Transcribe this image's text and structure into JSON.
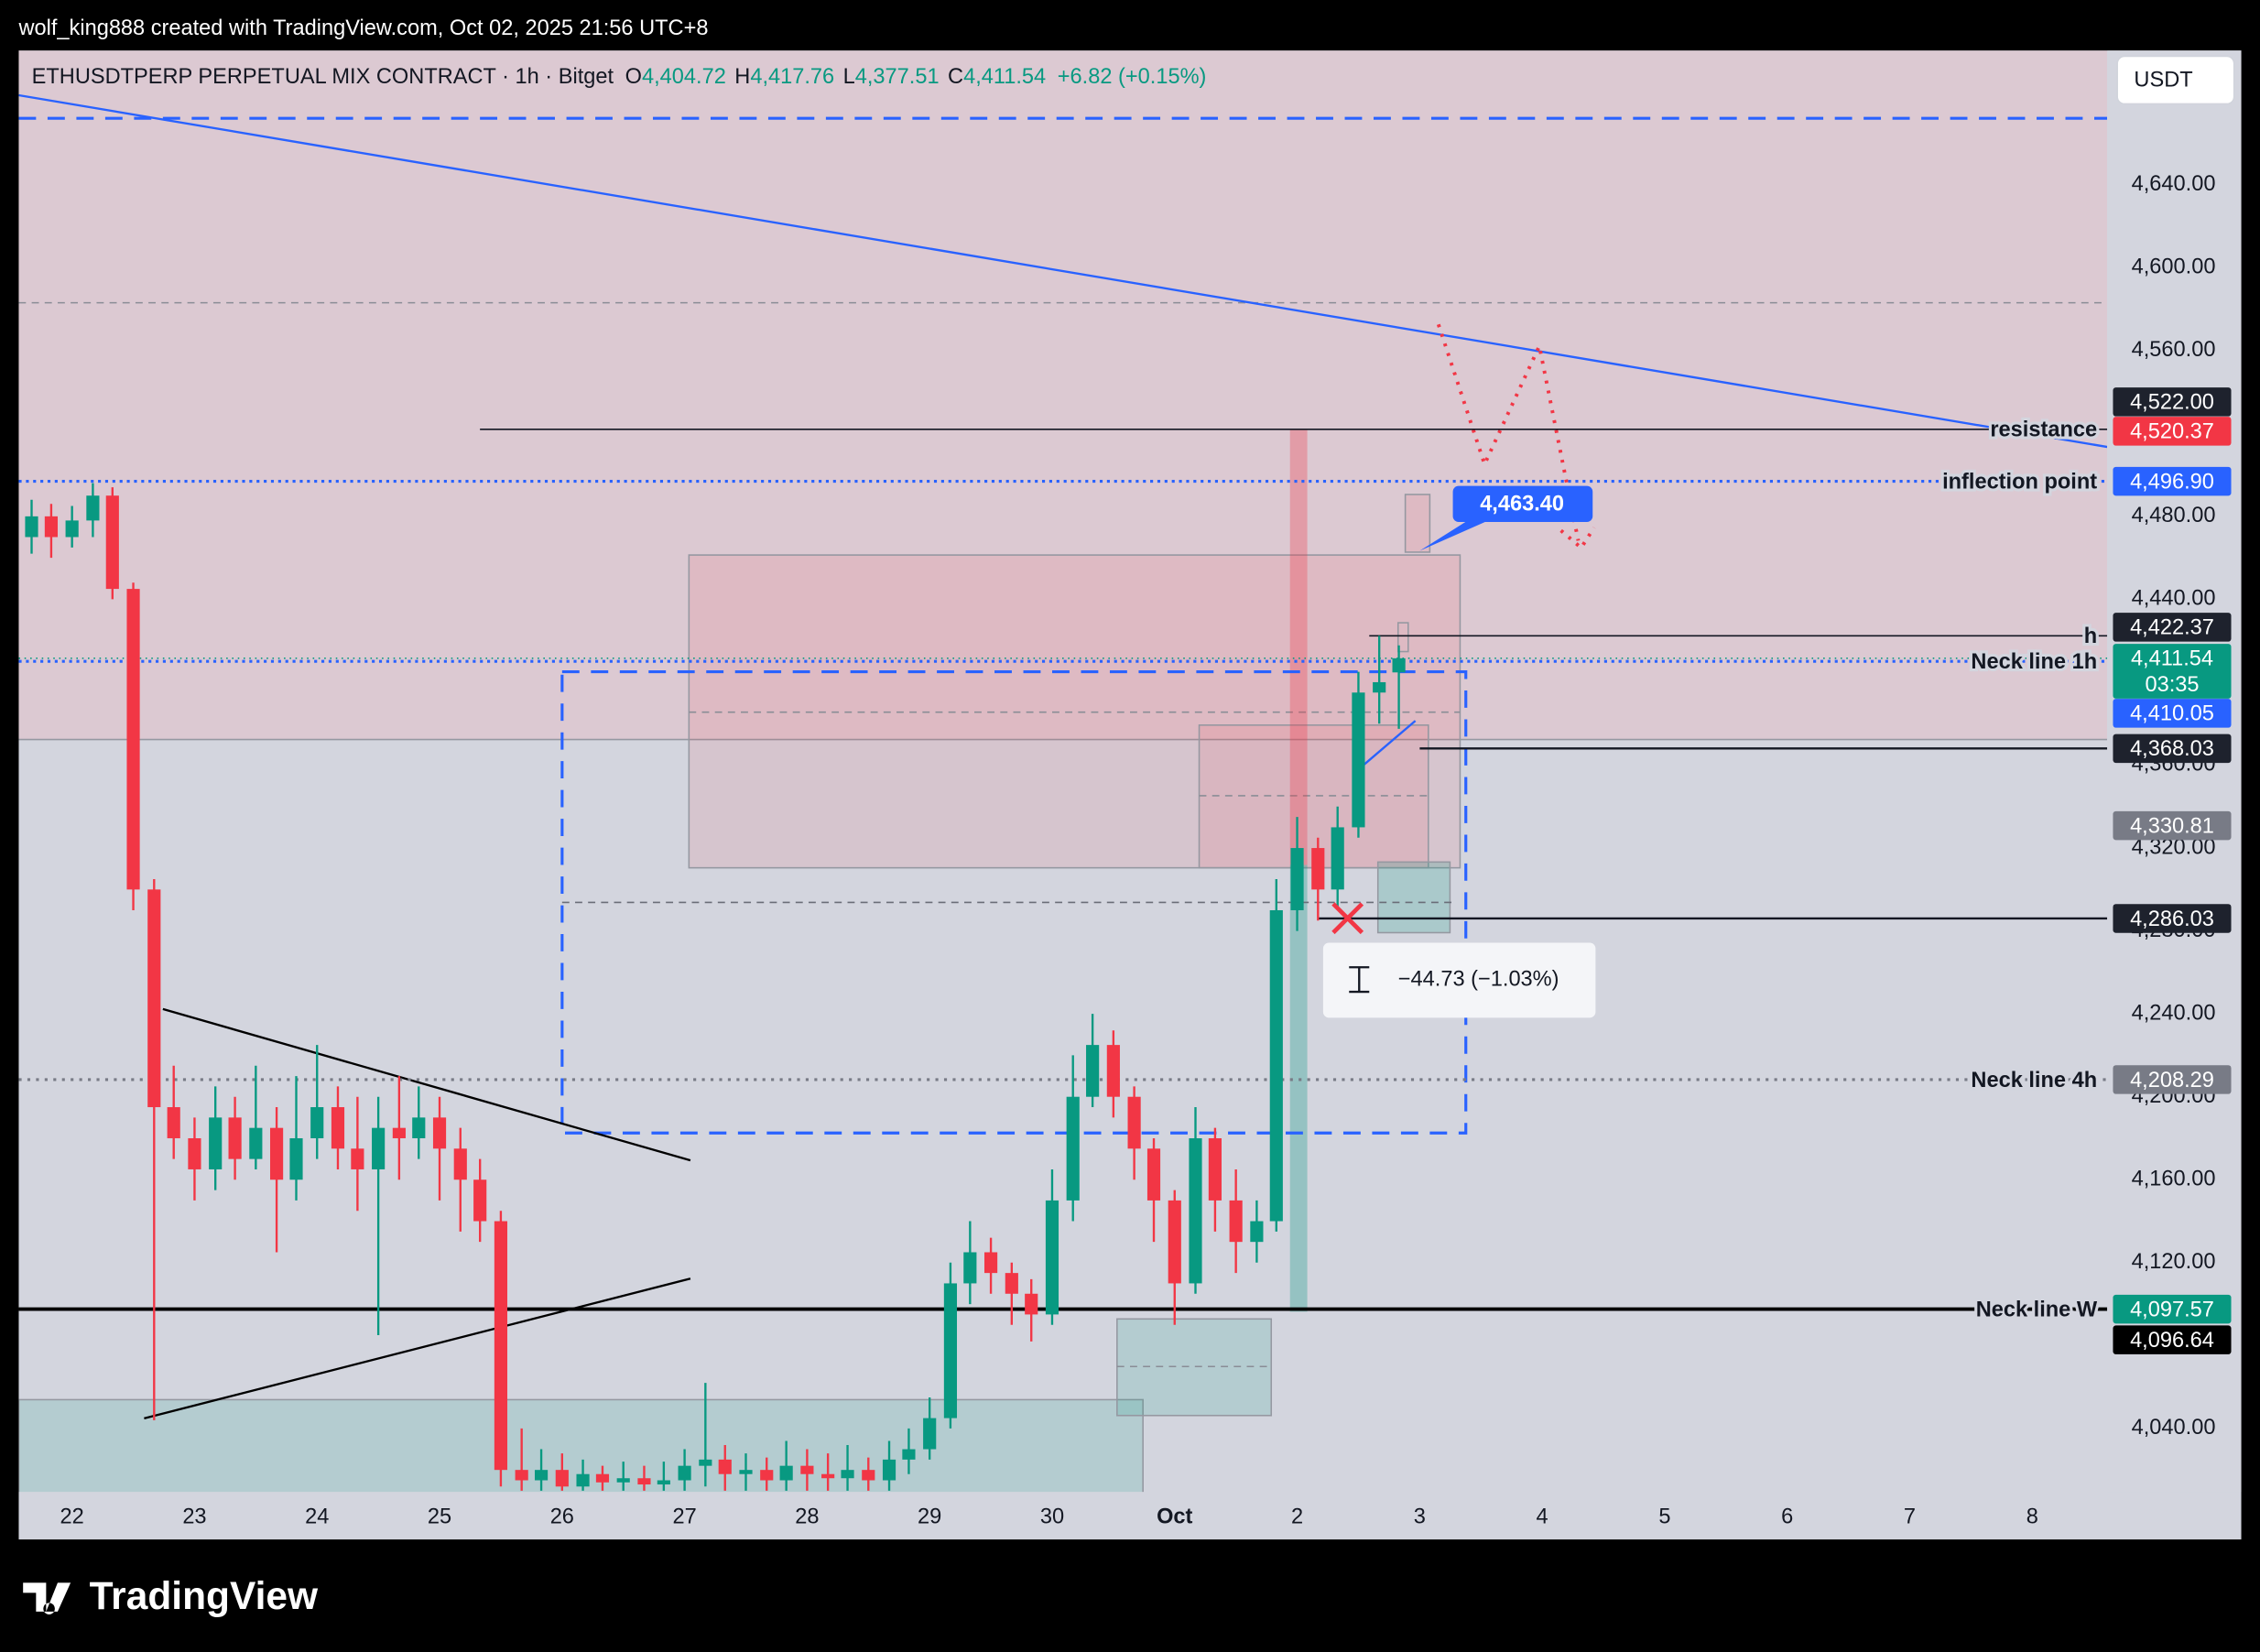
{
  "header": {
    "credit": "wolf_king888 created with TradingView.com, Oct 02, 2025 21:56 UTC+8",
    "symbol": "ETHUSDTPERP PERPETUAL MIX CONTRACT · 1h · Bitget",
    "ohlc": [
      {
        "key": "O",
        "value": "4,404.72"
      },
      {
        "key": "H",
        "value": "4,417.76"
      },
      {
        "key": "L",
        "value": "4,377.51"
      },
      {
        "key": "C",
        "value": "4,411.54"
      }
    ],
    "change": "+6.82 (+0.15%)",
    "currency": "USDT"
  },
  "footer": {
    "brand": "TradingView"
  },
  "chart_data": {
    "type": "candlestick",
    "up_color": "#089981",
    "down_color": "#f23645",
    "x": [
      -0.33,
      -0.17,
      0,
      0.17,
      0.33,
      0.5,
      0.67,
      0.83,
      1,
      1.17,
      1.33,
      1.5,
      1.67,
      1.83,
      2,
      2.17,
      2.33,
      2.5,
      2.67,
      2.83,
      3,
      3.17,
      3.33,
      3.5,
      3.67,
      3.83,
      4,
      4.17,
      4.33,
      4.5,
      4.67,
      4.83,
      5,
      5.17,
      5.33,
      5.5,
      5.67,
      5.83,
      6,
      6.17,
      6.33,
      6.5,
      6.67,
      6.83,
      7,
      7.17,
      7.33,
      7.5,
      7.67,
      7.83,
      8,
      8.17,
      8.33,
      8.5,
      8.67,
      8.83,
      9,
      9.17,
      9.33,
      9.5,
      9.67,
      9.83,
      10,
      10.17,
      10.33,
      10.5,
      10.67,
      10.83
    ],
    "open": [
      4470,
      4480,
      4470,
      4478,
      4490,
      4445,
      4300,
      4195,
      4180,
      4165,
      4190,
      4170,
      4185,
      4160,
      4180,
      4195,
      4175,
      4165,
      4185,
      4180,
      4190,
      4175,
      4160,
      4140,
      4020,
      4015,
      4020,
      4012,
      4018,
      4014,
      4016,
      4013,
      4015,
      4022,
      4025,
      4018,
      4020,
      4015,
      4022,
      4018,
      4016,
      4020,
      4015,
      4025,
      4030,
      4045,
      4110,
      4125,
      4115,
      4105,
      4095,
      4150,
      4200,
      4225,
      4200,
      4175,
      4150,
      4110,
      4180,
      4150,
      4130,
      4140,
      4290,
      4320,
      4300,
      4330,
      4395,
      4404.72
    ],
    "high": [
      4488,
      4486,
      4485,
      4496,
      4494,
      4448,
      4305,
      4215,
      4190,
      4205,
      4200,
      4215,
      4195,
      4210,
      4225,
      4205,
      4200,
      4200,
      4210,
      4205,
      4200,
      4185,
      4170,
      4145,
      4040,
      4030,
      4028,
      4025,
      4022,
      4024,
      4022,
      4024,
      4030,
      4062,
      4032,
      4028,
      4026,
      4034,
      4030,
      4028,
      4032,
      4026,
      4034,
      4040,
      4055,
      4120,
      4140,
      4132,
      4120,
      4112,
      4165,
      4220,
      4240,
      4232,
      4205,
      4180,
      4155,
      4195,
      4185,
      4165,
      4150,
      4305,
      4335,
      4325,
      4340,
      4405,
      4422.37,
      4417.76
    ],
    "low": [
      4462,
      4460,
      4465,
      4470,
      4440,
      4290,
      4044,
      4170,
      4150,
      4155,
      4160,
      4165,
      4125,
      4150,
      4170,
      4165,
      4145,
      4085,
      4160,
      4170,
      4150,
      4135,
      4130,
      4012,
      4010,
      4010,
      4010,
      4010,
      4010,
      4010,
      4010,
      4010,
      4010,
      4012,
      4010,
      4010,
      4010,
      4010,
      4010,
      4010,
      4010,
      4010,
      4010,
      4018,
      4025,
      4040,
      4100,
      4105,
      4090,
      4082,
      4090,
      4140,
      4195,
      4190,
      4160,
      4130,
      4090,
      4105,
      4135,
      4115,
      4120,
      4135,
      4280,
      4285,
      4290,
      4325,
      4380,
      4377.51
    ],
    "close": [
      4480,
      4470,
      4478,
      4490,
      4445,
      4300,
      4195,
      4180,
      4165,
      4190,
      4170,
      4185,
      4160,
      4180,
      4195,
      4175,
      4165,
      4185,
      4180,
      4190,
      4175,
      4160,
      4140,
      4020,
      4015,
      4020,
      4012,
      4018,
      4014,
      4016,
      4013,
      4015,
      4022,
      4025,
      4018,
      4020,
      4015,
      4022,
      4018,
      4016,
      4020,
      4015,
      4025,
      4030,
      4045,
      4110,
      4125,
      4115,
      4105,
      4095,
      4150,
      4200,
      4225,
      4200,
      4175,
      4150,
      4110,
      4180,
      4150,
      4130,
      4140,
      4290,
      4320,
      4300,
      4330,
      4395,
      4400,
      4411.54
    ],
    "xlim": [
      -0.435,
      16.612
    ],
    "xticks": [
      {
        "value": 0,
        "label": "22"
      },
      {
        "value": 1,
        "label": "23"
      },
      {
        "value": 2,
        "label": "24"
      },
      {
        "value": 3,
        "label": "25"
      },
      {
        "value": 4,
        "label": "26"
      },
      {
        "value": 5,
        "label": "27"
      },
      {
        "value": 6,
        "label": "28"
      },
      {
        "value": 7,
        "label": "29"
      },
      {
        "value": 8,
        "label": "30"
      },
      {
        "value": 9,
        "label": "Oct"
      },
      {
        "value": 10,
        "label": "2"
      },
      {
        "value": 11,
        "label": "3"
      },
      {
        "value": 12,
        "label": "4"
      },
      {
        "value": 13,
        "label": "5"
      },
      {
        "value": 14,
        "label": "6"
      },
      {
        "value": 15,
        "label": "7"
      },
      {
        "value": 16,
        "label": "8"
      }
    ],
    "ylim": [
      4009.4,
      4704.7
    ],
    "yticks": [
      {
        "value": 4040,
        "label": "4,040.00"
      },
      {
        "value": 4080,
        "label": "4,080.00"
      },
      {
        "value": 4120,
        "label": "4,120.00"
      },
      {
        "value": 4160,
        "label": "4,160.00"
      },
      {
        "value": 4200,
        "label": "4,200.00"
      },
      {
        "value": 4240,
        "label": "4,240.00"
      },
      {
        "value": 4280,
        "label": "4,280.00"
      },
      {
        "value": 4320,
        "label": "4,320.00"
      },
      {
        "value": 4360,
        "label": "4,360.00"
      },
      {
        "value": 4400,
        "label": "4,400.00"
      },
      {
        "value": 4440,
        "label": "4,440.00"
      },
      {
        "value": 4480,
        "label": "4,480.00"
      },
      {
        "value": 4520,
        "label": "4,520.00"
      },
      {
        "value": 4560,
        "label": "4,560.00"
      },
      {
        "value": 4600,
        "label": "4,600.00"
      },
      {
        "value": 4640,
        "label": "4,640.00"
      }
    ],
    "levels": [
      {
        "value": 4522,
        "label": "4,522.00",
        "color": "#1e222d",
        "annotation": "resistance"
      },
      {
        "value": 4520.37,
        "label": "4,520.37",
        "color": "#f23645"
      },
      {
        "value": 4496.9,
        "label": "4,496.90",
        "color": "#2962ff",
        "annotation": "inflection point"
      },
      {
        "value": 4422.37,
        "label": "4,422.37",
        "color": "#1e222d",
        "annotation": "h"
      },
      {
        "value": 4411.54,
        "label": "4,411.54",
        "sublabel": "03:35",
        "color": "#089981"
      },
      {
        "value": 4410.05,
        "label": "4,410.05",
        "color": "#2962ff",
        "annotation": "Neck line 1h"
      },
      {
        "value": 4368.03,
        "label": "4,368.03",
        "color": "#1e222d"
      },
      {
        "value": 4330.81,
        "label": "4,330.81",
        "color": "#787b86"
      },
      {
        "value": 4286.03,
        "label": "4,286.03",
        "color": "#1e222d"
      },
      {
        "value": 4208.29,
        "label": "4,208.29",
        "color": "#787b86",
        "annotation": "Neck line 4h"
      },
      {
        "value": 4097.57,
        "label": "4,097.57",
        "color": "#089981",
        "annotation": "Neck line W"
      },
      {
        "value": 4096.64,
        "label": "4,096.64",
        "color": "#000000"
      }
    ],
    "callout": {
      "value": 4463.4,
      "label": "4,463.40",
      "color": "#2962ff"
    },
    "measure": "−44.73 (−1.03%)"
  }
}
